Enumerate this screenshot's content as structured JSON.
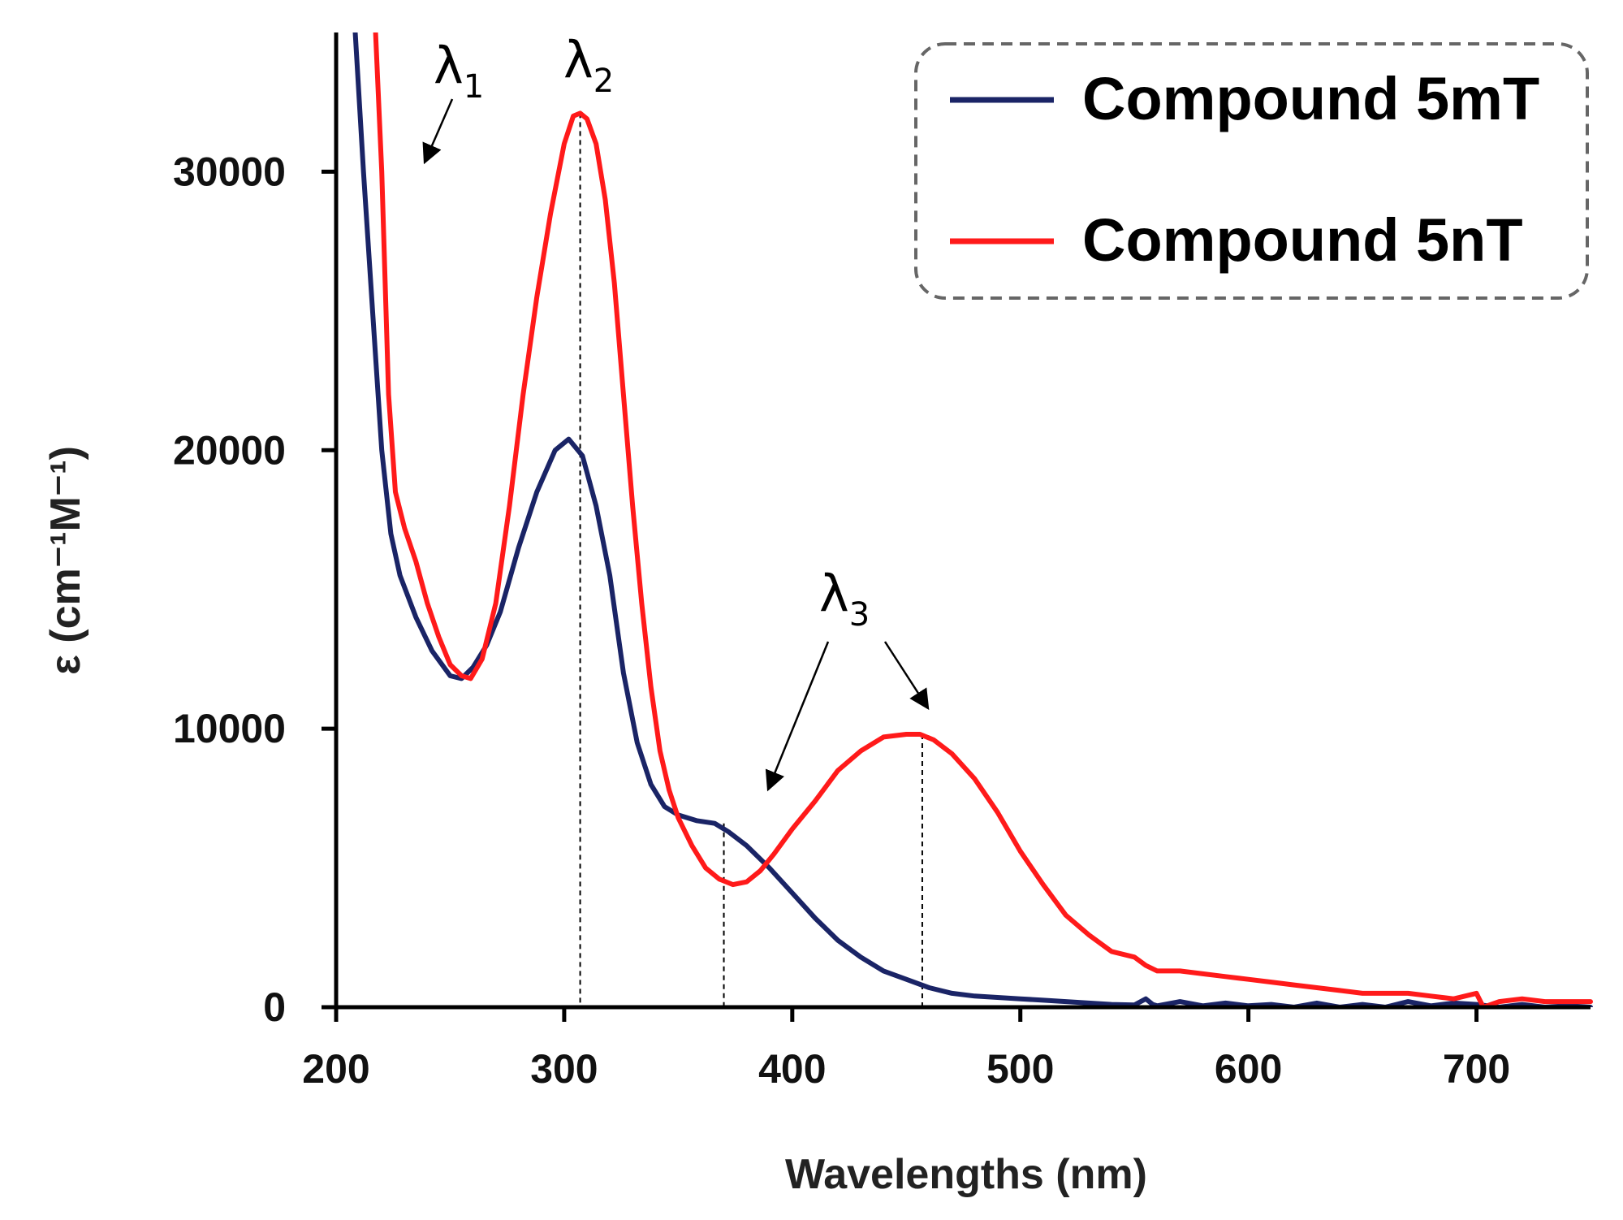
{
  "chart_data": {
    "type": "line",
    "title": "",
    "xlabel": "Wavelengths (nm)",
    "ylabel": "ε (cm⁻¹M⁻¹)",
    "xlim": [
      200,
      750
    ],
    "ylim": [
      0,
      35000
    ],
    "xticks": [
      200,
      300,
      400,
      500,
      600,
      700
    ],
    "xtick_labels": [
      "200",
      "300",
      "400",
      "500",
      "600",
      "700"
    ],
    "yticks": [
      0,
      10000,
      20000,
      30000
    ],
    "ytick_labels": [
      "0",
      "10000",
      "20000",
      "30000"
    ],
    "grid": false,
    "legend_position": "top-right",
    "series": [
      {
        "name": "Compound 5mT",
        "color": "#1a2466",
        "x": [
          208,
          212,
          216,
          220,
          224,
          228,
          235,
          242,
          250,
          255,
          260,
          266,
          272,
          280,
          288,
          296,
          302,
          308,
          314,
          320,
          326,
          332,
          338,
          344,
          350,
          358,
          366,
          372,
          380,
          390,
          400,
          410,
          420,
          430,
          440,
          450,
          460,
          470,
          480,
          490,
          500,
          510,
          520,
          530,
          540,
          550,
          555,
          558,
          560,
          570,
          580,
          590,
          600,
          610,
          620,
          630,
          640,
          650,
          660,
          670,
          680,
          690,
          700,
          710,
          720,
          730,
          740,
          750
        ],
        "y": [
          35500,
          30000,
          25000,
          20000,
          17000,
          15500,
          14000,
          12800,
          11900,
          11800,
          12200,
          13000,
          14200,
          16500,
          18500,
          20000,
          20400,
          19800,
          18000,
          15500,
          12000,
          9500,
          8000,
          7200,
          6900,
          6700,
          6600,
          6300,
          5800,
          5000,
          4100,
          3200,
          2400,
          1800,
          1300,
          1000,
          700,
          500,
          400,
          350,
          300,
          250,
          200,
          150,
          100,
          80,
          300,
          100,
          50,
          200,
          50,
          150,
          50,
          100,
          0,
          150,
          0,
          100,
          0,
          200,
          50,
          150,
          100,
          0,
          100,
          0,
          50,
          0
        ]
      },
      {
        "name": "Compound 5nT",
        "color": "#ff1a1a",
        "x": [
          217,
          220,
          223,
          226,
          230,
          235,
          240,
          245,
          250,
          255,
          259,
          264,
          270,
          276,
          282,
          288,
          294,
          300,
          304,
          307,
          310,
          314,
          318,
          322,
          326,
          330,
          334,
          338,
          342,
          346,
          350,
          356,
          362,
          368,
          374,
          380,
          386,
          392,
          400,
          410,
          420,
          430,
          440,
          450,
          456,
          462,
          470,
          480,
          490,
          500,
          510,
          520,
          530,
          540,
          550,
          555,
          560,
          570,
          580,
          590,
          600,
          610,
          620,
          630,
          640,
          650,
          660,
          670,
          680,
          690,
          700,
          703,
          710,
          720,
          730,
          740,
          750
        ],
        "y": [
          35500,
          30000,
          22000,
          18500,
          17200,
          16000,
          14500,
          13300,
          12300,
          11900,
          11800,
          12500,
          14500,
          18000,
          22000,
          25500,
          28500,
          31000,
          32000,
          32100,
          31900,
          31000,
          29000,
          26000,
          22000,
          18000,
          14500,
          11500,
          9200,
          7800,
          6800,
          5800,
          5000,
          4600,
          4400,
          4500,
          4900,
          5500,
          6400,
          7400,
          8500,
          9200,
          9700,
          9800,
          9800,
          9600,
          9100,
          8200,
          7000,
          5600,
          4400,
          3300,
          2600,
          2000,
          1800,
          1500,
          1300,
          1300,
          1200,
          1100,
          1000,
          900,
          800,
          700,
          600,
          500,
          500,
          500,
          400,
          300,
          500,
          0,
          200,
          300,
          200,
          200,
          200
        ]
      }
    ],
    "reference_lines": [
      {
        "x": 307,
        "y_top": 32100
      },
      {
        "x": 370,
        "y_top": 6600
      },
      {
        "x": 457,
        "y_top": 9800
      }
    ],
    "annotations": [
      {
        "symbol": "λ",
        "subscript": "1"
      },
      {
        "symbol": "λ",
        "subscript": "2"
      },
      {
        "symbol": "λ",
        "subscript": "3"
      }
    ]
  }
}
